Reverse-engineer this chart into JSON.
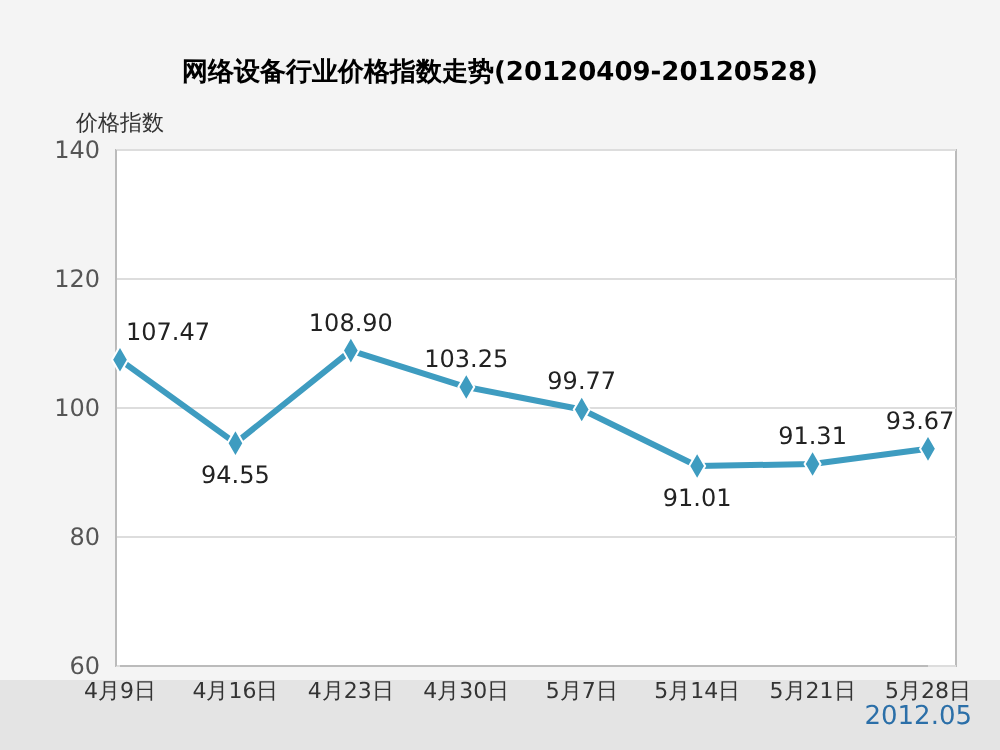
{
  "chart_data": {
    "type": "line",
    "title": "网络设备行业价格指数走势(20120409-20120528)",
    "ylabel": "价格指数",
    "categories": [
      "4月9日",
      "4月16日",
      "4月23日",
      "4月30日",
      "5月7日",
      "5月14日",
      "5月21日",
      "5月28日"
    ],
    "series": [
      {
        "color": "#3e9cc0",
        "values": [
          107.47,
          94.55,
          108.9,
          103.25,
          99.77,
          91.01,
          91.31,
          93.67
        ],
        "value_labels": [
          "107.47",
          "94.55",
          "108.90",
          "103.25",
          "99.77",
          "91.01",
          "91.31",
          "93.67"
        ]
      }
    ],
    "ylim": [
      60,
      140
    ],
    "yticks": [
      60,
      80,
      100,
      120,
      140
    ],
    "grid": "y",
    "marker": "diamond",
    "line_style": "solid",
    "annotations": [
      "2012.05"
    ]
  }
}
